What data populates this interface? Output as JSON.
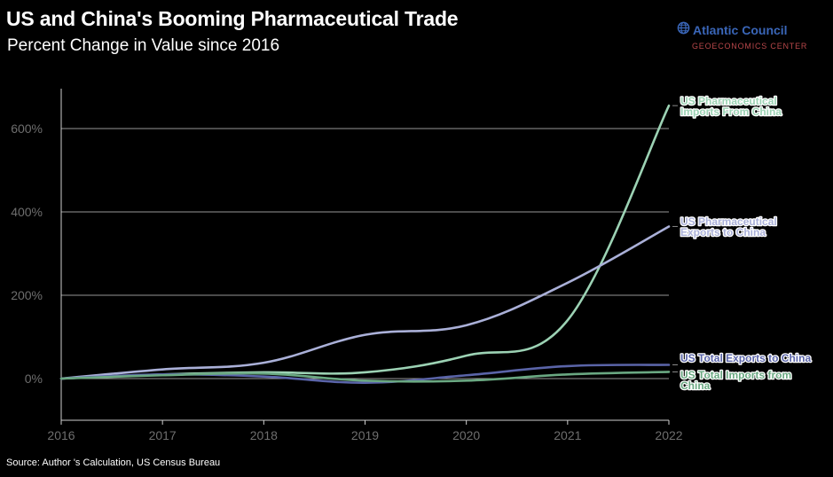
{
  "header": {
    "title": "US and China's Booming Pharmaceutical Trade",
    "subtitle": "Percent Change in Value since 2016"
  },
  "brand": {
    "name": "Atlantic Council",
    "sub": "GEOECONOMICS CENTER",
    "icon": "globe-icon"
  },
  "footer": {
    "source": "Source: Author 's Calculation, US Census Bureau"
  },
  "colors": {
    "background": "#000000",
    "grid": "#c8c8c8",
    "tick_text": "#6e6e6e",
    "brand_blue": "#3a66b8",
    "brand_red": "#b8474a"
  },
  "chart_data": {
    "type": "line",
    "title": "US and China's Booming Pharmaceutical Trade",
    "subtitle": "Percent Change in Value since 2016",
    "x": [
      2016,
      2017,
      2018,
      2019,
      2020,
      2021,
      2022
    ],
    "xlim": [
      2016,
      2022
    ],
    "ylim": [
      -100,
      700
    ],
    "yticks": [
      0,
      200,
      400,
      600
    ],
    "ytick_labels": [
      "0%",
      "200%",
      "400%",
      "600%"
    ],
    "xtick_labels": [
      "2016",
      "2017",
      "2018",
      "2019",
      "2020",
      "2021",
      "2022"
    ],
    "grid": "horizontal",
    "legend": "direct labels at right end of lines",
    "series": [
      {
        "name": "US Pharmaceutical Imports From China",
        "label_lines": [
          "US Pharmaceutical",
          "Imports From China"
        ],
        "color": "#9cd2b4",
        "values": [
          0,
          10,
          15,
          15,
          55,
          140,
          655
        ]
      },
      {
        "name": "US Pharmaceutical Exports to China",
        "label_lines": [
          "US Pharmaceutical",
          "Exports to China"
        ],
        "color": "#aab0d8",
        "values": [
          0,
          22,
          38,
          105,
          128,
          230,
          365
        ]
      },
      {
        "name": "US Total Exports to China",
        "label_lines": [
          "US Total Exports to China"
        ],
        "color": "#5a64a8",
        "values": [
          0,
          10,
          5,
          -10,
          8,
          30,
          33
        ]
      },
      {
        "name": "US Total Imports from China",
        "label_lines": [
          "US Total Imports from",
          "China"
        ],
        "color": "#6aa882",
        "values": [
          0,
          8,
          12,
          -5,
          -5,
          10,
          16
        ]
      }
    ]
  }
}
